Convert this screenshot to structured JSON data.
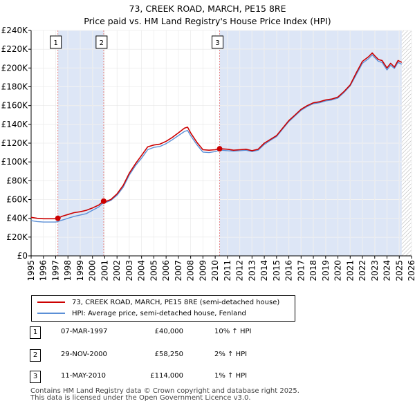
{
  "title_line1": "73, CREEK ROAD, MARCH, PE15 8RE",
  "title_line2": "Price paid vs. HM Land Registry's House Price Index (HPI)",
  "colors": {
    "property": "#cc0000",
    "hpi": "#5b8fd6",
    "shade": "#dde6f6",
    "sale_line": "#e88888",
    "hatch": "#888888"
  },
  "legend": {
    "property_label": "73, CREEK ROAD, MARCH, PE15 8RE (semi-detached house)",
    "hpi_label": "HPI: Average price, semi-detached house, Fenland"
  },
  "sales": [
    {
      "num": "1",
      "date": "07-MAR-1997",
      "price": "£40,000",
      "hpi": "10% ↑ HPI"
    },
    {
      "num": "2",
      "date": "29-NOV-2000",
      "price": "£58,250",
      "hpi": "2% ↑ HPI"
    },
    {
      "num": "3",
      "date": "11-MAY-2010",
      "price": "£114,000",
      "hpi": "1% ↑ HPI"
    }
  ],
  "footer_line1": "Contains HM Land Registry data © Crown copyright and database right 2025.",
  "footer_line2": "This data is licensed under the Open Government Licence v3.0.",
  "chart_data": {
    "type": "line",
    "title": "73, CREEK ROAD, MARCH, PE15 8RE — Price paid vs. HM Land Registry's House Price Index (HPI)",
    "xlim": [
      1995,
      2026
    ],
    "ylim": [
      0,
      240000
    ],
    "x_ticks": [
      "1995",
      "1996",
      "1997",
      "1998",
      "1999",
      "2000",
      "2001",
      "2002",
      "2003",
      "2004",
      "2005",
      "2006",
      "2007",
      "2008",
      "2009",
      "2010",
      "2011",
      "2012",
      "2013",
      "2014",
      "2015",
      "2016",
      "2017",
      "2018",
      "2019",
      "2020",
      "2021",
      "2022",
      "2023",
      "2024",
      "2025",
      "2026"
    ],
    "y_ticks": [
      {
        "value": 0,
        "label": "£0"
      },
      {
        "value": 20000,
        "label": "£20K"
      },
      {
        "value": 40000,
        "label": "£40K"
      },
      {
        "value": 60000,
        "label": "£60K"
      },
      {
        "value": 80000,
        "label": "£80K"
      },
      {
        "value": 100000,
        "label": "£100K"
      },
      {
        "value": 120000,
        "label": "£120K"
      },
      {
        "value": 140000,
        "label": "£140K"
      },
      {
        "value": 160000,
        "label": "£160K"
      },
      {
        "value": 180000,
        "label": "£180K"
      },
      {
        "value": 200000,
        "label": "£200K"
      },
      {
        "value": 220000,
        "label": "£220K"
      },
      {
        "value": 240000,
        "label": "£240K"
      }
    ],
    "sale_markers": [
      {
        "label": "1",
        "x": 1997.18,
        "y": 40000
      },
      {
        "label": "2",
        "x": 2000.91,
        "y": 58250
      },
      {
        "label": "3",
        "x": 2010.36,
        "y": 114000
      }
    ],
    "forecast_start": 2025.2,
    "series": [
      {
        "name": "73, CREEK ROAD, MARCH, PE15 8RE (semi-detached house)",
        "x": [
          1995.0,
          1995.5,
          1996.0,
          1996.5,
          1997.0,
          1997.18,
          1997.5,
          1998.0,
          1998.5,
          1999.0,
          1999.5,
          2000.0,
          2000.5,
          2000.91,
          2001.0,
          2001.5,
          2002.0,
          2002.5,
          2003.0,
          2003.5,
          2004.0,
          2004.5,
          2005.0,
          2005.5,
          2006.0,
          2006.5,
          2007.0,
          2007.5,
          2007.75,
          2008.0,
          2008.5,
          2009.0,
          2009.5,
          2010.0,
          2010.36,
          2010.5,
          2011.0,
          2011.5,
          2012.0,
          2012.5,
          2013.0,
          2013.5,
          2014.0,
          2014.5,
          2015.0,
          2015.5,
          2016.0,
          2016.5,
          2017.0,
          2017.5,
          2018.0,
          2018.5,
          2019.0,
          2019.5,
          2020.0,
          2020.5,
          2021.0,
          2021.5,
          2022.0,
          2022.5,
          2022.8,
          2023.0,
          2023.3,
          2023.6,
          2024.0,
          2024.3,
          2024.6,
          2024.9,
          2025.2
        ],
        "values": [
          41000,
          40000,
          39500,
          39500,
          39500,
          40000,
          42000,
          44000,
          46000,
          47000,
          48500,
          51000,
          54000,
          58250,
          57500,
          60000,
          66000,
          75000,
          88000,
          98000,
          107000,
          116000,
          118000,
          119000,
          122000,
          126000,
          131000,
          136000,
          137000,
          131000,
          121000,
          113000,
          112500,
          113000,
          114000,
          114000,
          113500,
          112500,
          113000,
          113500,
          112000,
          113500,
          120000,
          124000,
          128000,
          136000,
          144000,
          150000,
          156000,
          160000,
          163000,
          164000,
          166000,
          167000,
          169000,
          175000,
          182000,
          195000,
          207000,
          212000,
          216000,
          213000,
          209000,
          208000,
          200000,
          205000,
          201000,
          208000,
          206000
        ]
      },
      {
        "name": "HPI: Average price, semi-detached house, Fenland",
        "x": [
          1995.0,
          1995.5,
          1996.0,
          1996.5,
          1997.0,
          1997.18,
          1997.5,
          1998.0,
          1998.5,
          1999.0,
          1999.5,
          2000.0,
          2000.5,
          2000.91,
          2001.0,
          2001.5,
          2002.0,
          2002.5,
          2003.0,
          2003.5,
          2004.0,
          2004.5,
          2005.0,
          2005.5,
          2006.0,
          2006.5,
          2007.0,
          2007.5,
          2007.75,
          2008.0,
          2008.5,
          2009.0,
          2009.5,
          2010.0,
          2010.36,
          2010.5,
          2011.0,
          2011.5,
          2012.0,
          2012.5,
          2013.0,
          2013.5,
          2014.0,
          2014.5,
          2015.0,
          2015.5,
          2016.0,
          2016.5,
          2017.0,
          2017.5,
          2018.0,
          2018.5,
          2019.0,
          2019.5,
          2020.0,
          2020.5,
          2021.0,
          2021.5,
          2022.0,
          2022.5,
          2022.8,
          2023.0,
          2023.3,
          2023.6,
          2024.0,
          2024.3,
          2024.6,
          2024.9,
          2025.2
        ],
        "values": [
          37500,
          36500,
          36000,
          36000,
          36000,
          36500,
          38000,
          40000,
          42000,
          43500,
          45000,
          48500,
          52000,
          57000,
          56500,
          59000,
          64500,
          73000,
          86000,
          96000,
          104000,
          113000,
          115500,
          116500,
          119500,
          123500,
          128000,
          132500,
          133500,
          128000,
          118500,
          110500,
          110000,
          111000,
          112500,
          112500,
          112000,
          111500,
          112000,
          112500,
          111000,
          112500,
          118500,
          123000,
          127000,
          135000,
          143000,
          149000,
          155000,
          159000,
          162000,
          163000,
          165000,
          166000,
          168000,
          174000,
          181000,
          193000,
          205000,
          210000,
          214000,
          211000,
          207000,
          206000,
          198000,
          203000,
          199500,
          206000,
          204000
        ]
      }
    ]
  }
}
